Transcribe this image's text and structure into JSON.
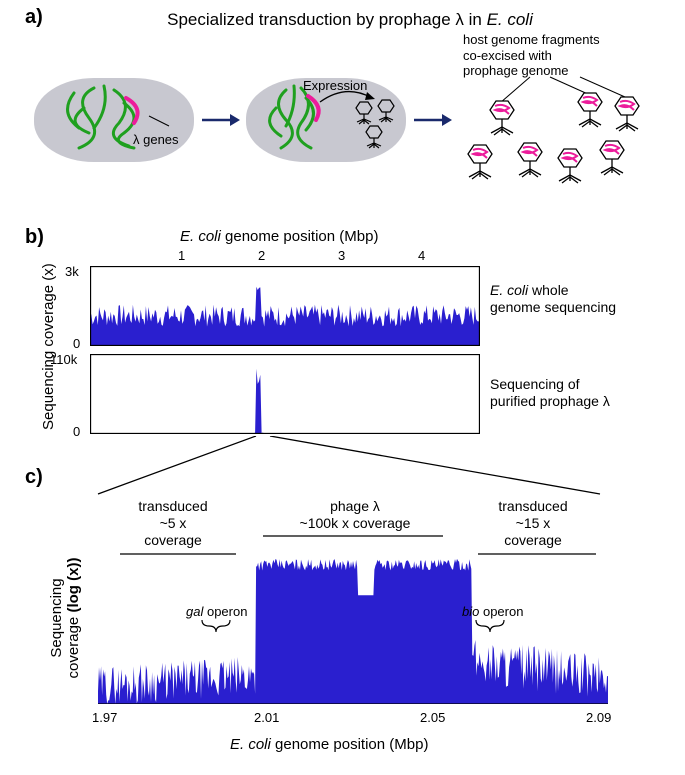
{
  "panelA": {
    "label": "a)",
    "title": "Specialized transduction by prophage λ in",
    "title_italic": "E. coli",
    "lambda_label": "λ genes",
    "expression_label": "Expression",
    "host_label": "host genome fragments\nco-excised with\nprophage genome",
    "cell_fill": "#c8c8d0",
    "dna_color": "#1fa01f",
    "lambda_color": "#ec1c9b",
    "phage_outline": "#000000"
  },
  "panelB": {
    "label": "b)",
    "x_axis_title_pre": "E. coli",
    "x_axis_title_post": " genome position (Mbp)",
    "y_axis_title": "Sequencing coverage (x)",
    "top_ymax_label": "3k",
    "bot_ymax_label": "110k",
    "zero_label": "0",
    "x_ticks": [
      "1",
      "2",
      "3",
      "4"
    ],
    "top_side_label_pre": "E. coli",
    "top_side_label_post": " whole\ngenome sequencing",
    "bot_side_label": "Sequencing of\npurified prophage λ",
    "bar_color": "#2a1fcf",
    "plot_border": "#000000",
    "xlim": [
      0,
      4.7
    ],
    "top_ylim": [
      0,
      3000
    ],
    "bot_ylim": [
      0,
      110000
    ],
    "top_baseline": 1200,
    "top_peak_x": 2.03,
    "top_peak_val": 3000,
    "bot_peak_x": 2.03,
    "bot_peak_val": 110000
  },
  "panelC": {
    "label": "c)",
    "y_axis_title_1": "Sequencing",
    "y_axis_title_2": "coverage",
    "y_axis_title_bold": "(log (x))",
    "x_axis_title_pre": "E. coli",
    "x_axis_title_post": " genome position (Mbp)",
    "left_region_l1": "transduced",
    "left_region_l2": "~5 x",
    "left_region_l3": "coverage",
    "mid_region_l1": "phage λ",
    "mid_region_l2": "~100k x coverage",
    "right_region_l1": "transduced",
    "right_region_l2": "~15 x",
    "right_region_l3": "coverage",
    "gal_operon_pre": "gal",
    "gal_operon_post": " operon",
    "bio_operon_pre": "bio",
    "bio_operon_post": " operon",
    "x_ticks": [
      "1.97",
      "2.01",
      "2.05",
      "2.09"
    ],
    "bar_color": "#2a1fcf",
    "xlim": [
      1.97,
      2.09
    ],
    "ylim_log": [
      0,
      5.1
    ],
    "left_flank_cov_log": 0.7,
    "right_flank_cov_log": 1.18,
    "phage_cov_log": 5.0,
    "phage_xstart": 2.007,
    "phage_xend": 2.058
  }
}
